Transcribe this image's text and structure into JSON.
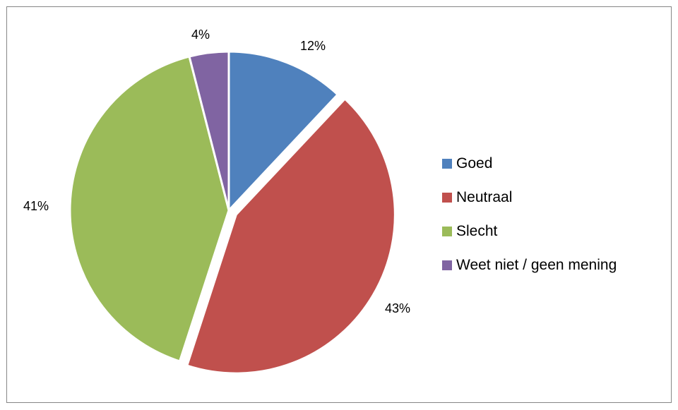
{
  "chart_data": {
    "type": "pie",
    "categories": [
      "Goed",
      "Neutraal",
      "Slecht",
      "Weet niet / geen mening"
    ],
    "values": [
      12,
      43,
      41,
      4
    ],
    "labels": [
      "12%",
      "43%",
      "41%",
      "4%"
    ],
    "colors": [
      "#4F81BD",
      "#C0504D",
      "#9BBB59",
      "#8064A2"
    ],
    "exploded": [
      false,
      true,
      false,
      false
    ],
    "legend_position": "right",
    "title": ""
  }
}
